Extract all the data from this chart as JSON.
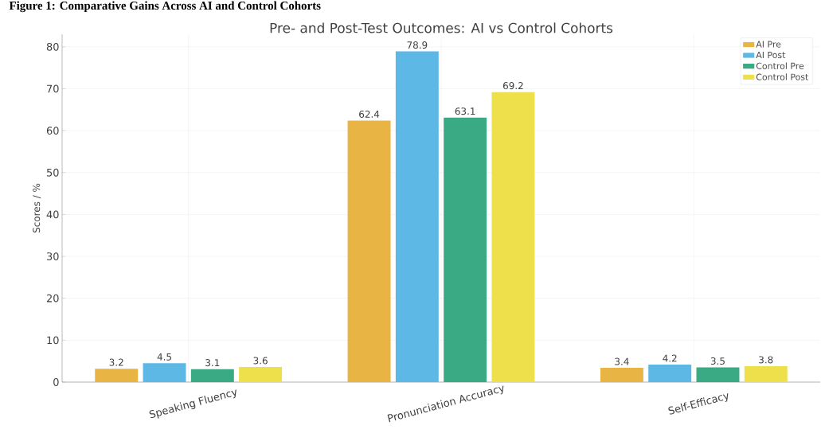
{
  "chart_data": {
    "type": "bar",
    "title": "Pre- and Post-Test Outcomes: AI vs Control Cohorts",
    "ylabel": "Scores / %",
    "annotations": [
      "Figure 1: Comparative Gains Across AI and Control Cohorts"
    ],
    "categories": [
      "Speaking Fluency",
      "Pronunciation Accuracy",
      "Self-Efficacy"
    ],
    "series": [
      {
        "name": "AI Pre",
        "color": "#e8b443",
        "values": [
          3.2,
          62.4,
          3.4
        ]
      },
      {
        "name": "AI Post",
        "color": "#5db8e6",
        "values": [
          4.5,
          78.9,
          4.2
        ]
      },
      {
        "name": "Control Pre",
        "color": "#3aaa85",
        "values": [
          3.1,
          63.1,
          3.5
        ]
      },
      {
        "name": "Control Post",
        "color": "#ede04a",
        "values": [
          3.6,
          69.2,
          3.8
        ]
      }
    ],
    "ylim": [
      0,
      83
    ],
    "yticks": [
      0,
      10,
      20,
      30,
      40,
      50,
      60,
      70,
      80
    ],
    "grid": true,
    "legend": "top right",
    "data_labels": true
  }
}
